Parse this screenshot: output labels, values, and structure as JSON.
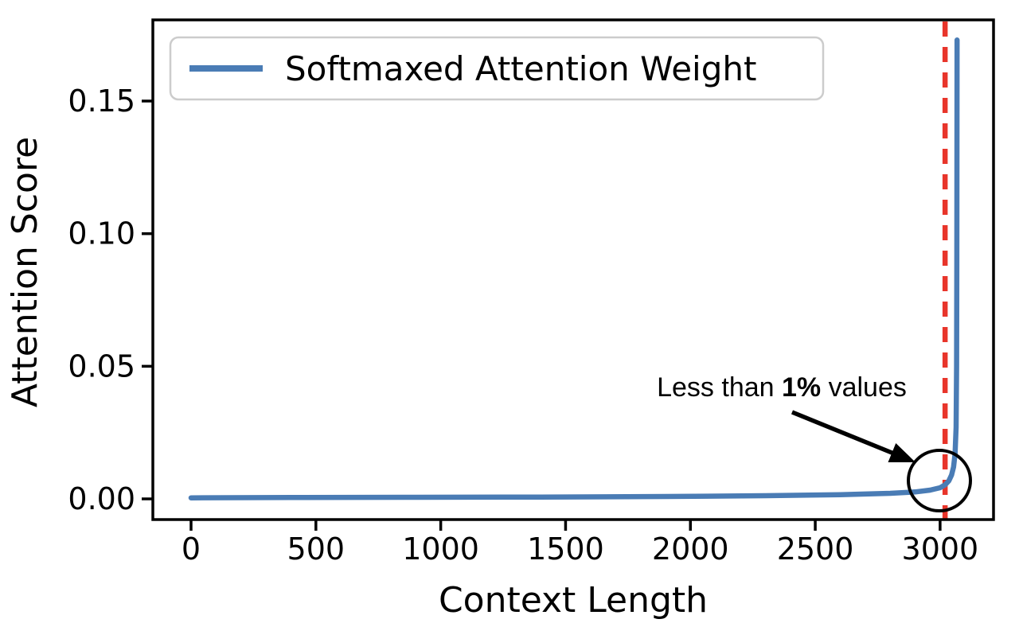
{
  "colors": {
    "background": "#ffffff",
    "spine": "#000000",
    "line_blue": "#4a7cb5",
    "vline_red": "#e8352b",
    "legend_border": "#cccccc",
    "text": "#000000"
  },
  "chart_data": {
    "type": "line",
    "title": "",
    "xlabel": "Context Length",
    "ylabel": "Attention Score",
    "xlim": [
      -153,
      3214
    ],
    "ylim": [
      -0.0078,
      0.1806
    ],
    "grid": false,
    "legend_position": "upper left",
    "xticks": [
      0,
      500,
      1000,
      1500,
      2000,
      2500,
      3000
    ],
    "yticks": [
      {
        "value": 0.0,
        "label": "0.00"
      },
      {
        "value": 0.05,
        "label": "0.05"
      },
      {
        "value": 0.1,
        "label": "0.10"
      },
      {
        "value": 0.15,
        "label": "0.15"
      }
    ],
    "series": [
      {
        "name": "Softmaxed Attention Weight",
        "color": "#4a7cb5",
        "linewidth": 6.5,
        "points": [
          [
            0,
            0.0004
          ],
          [
            400,
            0.0005
          ],
          [
            900,
            0.0006
          ],
          [
            1400,
            0.0007
          ],
          [
            1900,
            0.0009
          ],
          [
            2300,
            0.0012
          ],
          [
            2600,
            0.0016
          ],
          [
            2800,
            0.0021
          ],
          [
            2900,
            0.0026
          ],
          [
            2960,
            0.0033
          ],
          [
            3000,
            0.0042
          ],
          [
            3020,
            0.0053
          ],
          [
            3035,
            0.0068
          ],
          [
            3046,
            0.009
          ],
          [
            3054,
            0.012
          ],
          [
            3060,
            0.017
          ],
          [
            3064,
            0.027
          ],
          [
            3066,
            0.05
          ],
          [
            3067,
            0.09
          ],
          [
            3068,
            0.173
          ]
        ]
      }
    ],
    "peak_value": 0.173,
    "vline": {
      "x": 3020,
      "color": "#e8352b",
      "style": "dashed"
    },
    "annotation": {
      "text_prefix": "Less than ",
      "text_bold": "1%",
      "text_suffix": " values"
    }
  }
}
